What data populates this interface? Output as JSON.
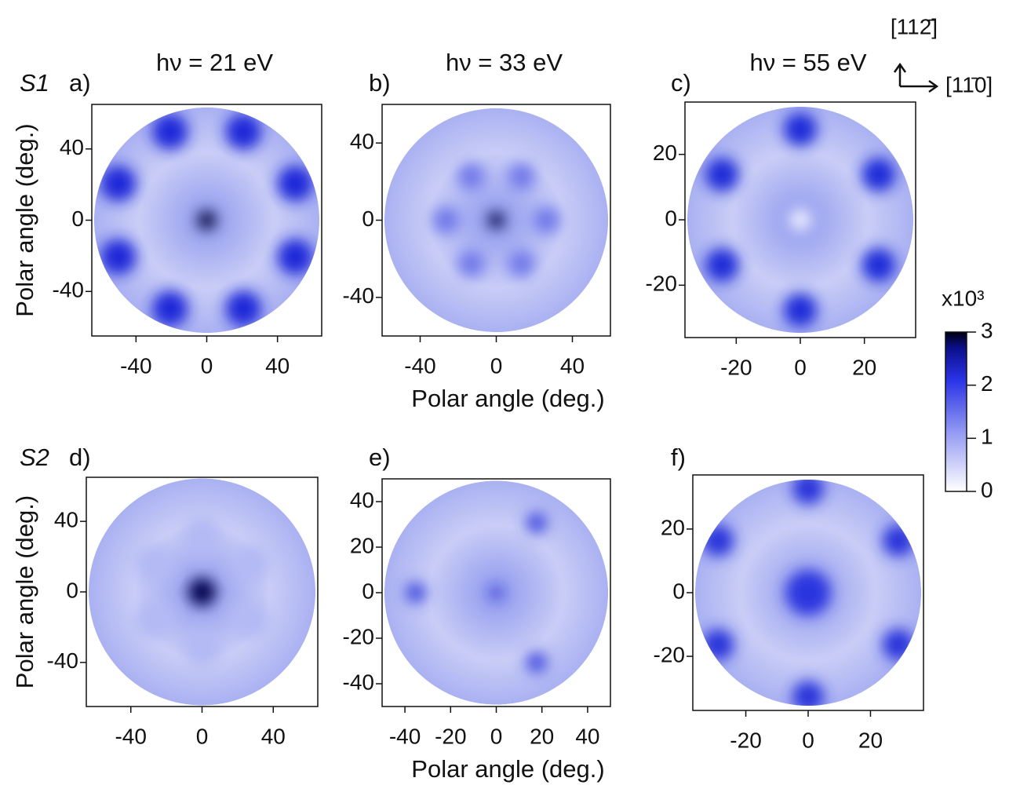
{
  "chart_data": [
    {
      "type": "heatmap",
      "row_label": "S1",
      "panel": "a)",
      "title": "hν = 21 eV",
      "ylabel": "Polar angle (deg.)",
      "xlim": [
        -65,
        65
      ],
      "ylim": [
        -65,
        65
      ],
      "xticks": [
        -40,
        0,
        40
      ],
      "yticks": [
        -40,
        0,
        40
      ]
    },
    {
      "type": "heatmap",
      "panel": "b)",
      "title": "hν = 33 eV",
      "xlabel": "Polar angle (deg.)",
      "xlim": [
        -60,
        60
      ],
      "ylim": [
        -60,
        60
      ],
      "xticks": [
        -40,
        0,
        40
      ],
      "yticks": [
        -40,
        0,
        40
      ]
    },
    {
      "type": "heatmap",
      "panel": "c)",
      "title": "hν = 55 eV",
      "xlim": [
        -36,
        36
      ],
      "ylim": [
        -36,
        36
      ],
      "xticks": [
        -20,
        0,
        20
      ],
      "yticks": [
        -20,
        0,
        20
      ]
    },
    {
      "type": "heatmap",
      "row_label": "S2",
      "panel": "d)",
      "ylabel": "Polar angle (deg.)",
      "xlim": [
        -65,
        65
      ],
      "ylim": [
        -65,
        65
      ],
      "xticks": [
        -40,
        0,
        40
      ],
      "yticks": [
        -40,
        0,
        40
      ]
    },
    {
      "type": "heatmap",
      "panel": "e)",
      "xlabel": "Polar angle (deg.)",
      "xlim": [
        -50,
        50
      ],
      "ylim": [
        -50,
        50
      ],
      "xticks": [
        -40,
        -20,
        0,
        20,
        40
      ],
      "yticks": [
        -40,
        -20,
        0,
        20,
        40
      ]
    },
    {
      "type": "heatmap",
      "panel": "f)",
      "xlim": [
        -37,
        37
      ],
      "ylim": [
        -37,
        37
      ],
      "xticks": [
        -20,
        0,
        20
      ],
      "yticks": [
        -20,
        0,
        20
      ]
    }
  ],
  "colorbar": {
    "label": "x10³",
    "lim": [
      0,
      3
    ],
    "ticks": [
      0,
      1,
      2,
      3
    ]
  },
  "directions": [
    "[112̄]",
    "[11̄0]"
  ]
}
